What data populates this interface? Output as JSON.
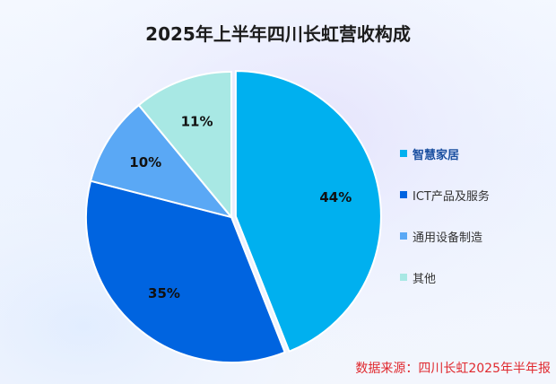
{
  "chart_data": {
    "type": "pie",
    "title": "2025年上半年四川长虹营收构成",
    "categories": [
      "智慧家居",
      "ICT产品及服务",
      "通用设备制造",
      "其他"
    ],
    "values": [
      44,
      35,
      10,
      11
    ],
    "labels": [
      "44%",
      "35%",
      "10%",
      "11%"
    ],
    "colors": [
      "#00b0ef",
      "#0064e0",
      "#5aa8f5",
      "#a8e8e4"
    ],
    "legend_position": "right",
    "exploded": "智慧家居"
  },
  "legend": {
    "items": [
      {
        "label": "智慧家居",
        "color": "#00b0ef"
      },
      {
        "label": "ICT产品及服务",
        "color": "#0064e0"
      },
      {
        "label": "通用设备制造",
        "color": "#5aa8f5"
      },
      {
        "label": "其他",
        "color": "#a8e8e4"
      }
    ]
  },
  "source": "数据来源：四川长虹2025年半年报"
}
